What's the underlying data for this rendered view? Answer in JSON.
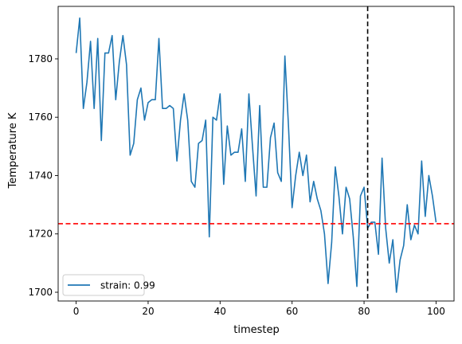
{
  "chart_data": {
    "type": "line",
    "title": "",
    "xlabel": "timestep",
    "ylabel": "Temperature K",
    "xlim": [
      -5,
      105
    ],
    "ylim": [
      1697,
      1798
    ],
    "xticks": [
      0,
      20,
      40,
      60,
      80,
      100
    ],
    "yticks": [
      1700,
      1720,
      1740,
      1760,
      1780
    ],
    "grid": false,
    "legend_position": "lower-left",
    "series": [
      {
        "name": "strain: 0.99",
        "color": "#1f77b4",
        "x": [
          0,
          1,
          2,
          3,
          4,
          5,
          6,
          7,
          8,
          9,
          10,
          11,
          12,
          13,
          14,
          15,
          16,
          17,
          18,
          19,
          20,
          21,
          22,
          23,
          24,
          25,
          26,
          27,
          28,
          29,
          30,
          31,
          32,
          33,
          34,
          35,
          36,
          37,
          38,
          39,
          40,
          41,
          42,
          43,
          44,
          45,
          46,
          47,
          48,
          49,
          50,
          51,
          52,
          53,
          54,
          55,
          56,
          57,
          58,
          59,
          60,
          61,
          62,
          63,
          64,
          65,
          66,
          67,
          68,
          69,
          70,
          71,
          72,
          73,
          74,
          75,
          76,
          77,
          78,
          79,
          80,
          81,
          82,
          83,
          84,
          85,
          86,
          87,
          88,
          89,
          90,
          91,
          92,
          93,
          94,
          95,
          96,
          97,
          98,
          99,
          100
        ],
        "y": [
          1782,
          1794,
          1763,
          1772,
          1786,
          1763,
          1787,
          1752,
          1782,
          1782,
          1788,
          1766,
          1779,
          1788,
          1778,
          1747,
          1751,
          1766,
          1770,
          1759,
          1765,
          1766,
          1766,
          1787,
          1763,
          1763,
          1764,
          1763,
          1745,
          1759,
          1768,
          1759,
          1738,
          1736,
          1751,
          1752,
          1759,
          1719,
          1760,
          1759,
          1768,
          1737,
          1757,
          1747,
          1748,
          1748,
          1756,
          1738,
          1768,
          1750,
          1733,
          1764,
          1736,
          1736,
          1753,
          1758,
          1741,
          1738,
          1781,
          1757,
          1729,
          1740,
          1748,
          1740,
          1747,
          1731,
          1738,
          1732,
          1728,
          1720,
          1703,
          1717,
          1743,
          1733,
          1720,
          1736,
          1732,
          1719,
          1702,
          1733,
          1736,
          1722,
          1724,
          1724,
          1713,
          1746,
          1722,
          1710,
          1718,
          1700,
          1711,
          1716,
          1730,
          1718,
          1723,
          1720,
          1745,
          1726,
          1740,
          1733,
          1724
        ]
      }
    ],
    "reference_lines": [
      {
        "orientation": "horizontal",
        "value": 1723.5,
        "color": "#ff0000",
        "style": "dashed"
      },
      {
        "orientation": "vertical",
        "value": 81,
        "color": "#000000",
        "style": "dashed"
      }
    ]
  }
}
